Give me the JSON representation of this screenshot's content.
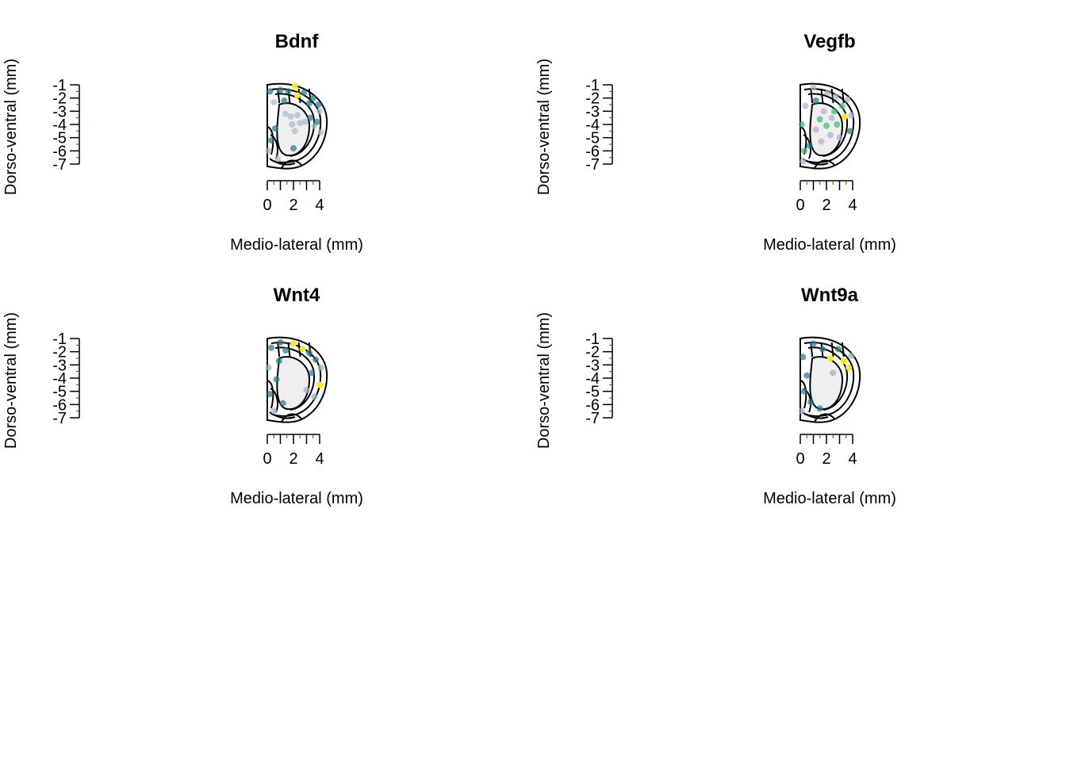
{
  "chart_data": [
    {
      "type": "scatter",
      "title": "Bdnf",
      "xlabel": "Medio-lateral (mm)",
      "ylabel": "Dorso-ventral (mm)",
      "xlim": [
        0,
        4
      ],
      "ylim": [
        -7,
        -1
      ],
      "xticks": [
        "0",
        "2",
        "4"
      ],
      "yticks": [
        "-1",
        "-2",
        "-3",
        "-4",
        "-5",
        "-6",
        "-7"
      ],
      "colors": {
        "low": "#a6bcd0",
        "mid": "#2a788e",
        "hi": "#fde725"
      },
      "points": [
        {
          "x": 2.1,
          "y": -1.1,
          "c": "hi"
        },
        {
          "x": 2.3,
          "y": -1.8,
          "c": "hi"
        },
        {
          "x": 0.2,
          "y": -1.5,
          "c": "mid"
        },
        {
          "x": 1.0,
          "y": -1.4,
          "c": "mid"
        },
        {
          "x": 1.6,
          "y": -1.5,
          "c": "mid"
        },
        {
          "x": 2.8,
          "y": -1.6,
          "c": "mid"
        },
        {
          "x": 3.5,
          "y": -2.0,
          "c": "mid"
        },
        {
          "x": 3.9,
          "y": -2.5,
          "c": "mid"
        },
        {
          "x": 0.5,
          "y": -2.3,
          "c": "low"
        },
        {
          "x": 1.3,
          "y": -2.2,
          "c": "mid"
        },
        {
          "x": 3.2,
          "y": -2.4,
          "c": "mid"
        },
        {
          "x": 4.0,
          "y": -3.0,
          "c": "low"
        },
        {
          "x": 1.4,
          "y": -3.2,
          "c": "low"
        },
        {
          "x": 1.8,
          "y": -3.4,
          "c": "low"
        },
        {
          "x": 2.3,
          "y": -3.3,
          "c": "low"
        },
        {
          "x": 3.3,
          "y": -3.5,
          "c": "mid"
        },
        {
          "x": 1.9,
          "y": -4.0,
          "c": "low"
        },
        {
          "x": 2.5,
          "y": -3.9,
          "c": "low"
        },
        {
          "x": 2.9,
          "y": -3.8,
          "c": "low"
        },
        {
          "x": 3.6,
          "y": -4.1,
          "c": "low"
        },
        {
          "x": 2.1,
          "y": -4.5,
          "c": "low"
        },
        {
          "x": 4.1,
          "y": -4.6,
          "c": "low"
        },
        {
          "x": 0.6,
          "y": -4.3,
          "c": "mid"
        },
        {
          "x": 0.3,
          "y": -5.2,
          "c": "mid"
        },
        {
          "x": 2.0,
          "y": -5.8,
          "c": "mid"
        },
        {
          "x": 0.1,
          "y": -6.0,
          "c": "low"
        },
        {
          "x": 0.8,
          "y": -6.6,
          "c": "low"
        },
        {
          "x": 3.8,
          "y": -3.8,
          "c": "mid"
        }
      ]
    },
    {
      "type": "scatter",
      "title": "Vegfb",
      "xlabel": "Medio-lateral (mm)",
      "ylabel": "Dorso-ventral (mm)",
      "xlim": [
        0,
        4
      ],
      "ylim": [
        -7,
        -1
      ],
      "xticks": [
        "0",
        "2",
        "4"
      ],
      "yticks": [
        "-1",
        "-2",
        "-3",
        "-4",
        "-5",
        "-6",
        "-7"
      ],
      "colors": {
        "low": "#b9abd0",
        "mid": "#2a788e",
        "grn": "#3dbb6f",
        "hi": "#fde725"
      },
      "points": [
        {
          "x": 3.4,
          "y": -3.4,
          "c": "hi"
        },
        {
          "x": 2.6,
          "y": -3.0,
          "c": "grn"
        },
        {
          "x": 3.2,
          "y": -2.6,
          "c": "grn"
        },
        {
          "x": 1.5,
          "y": -3.6,
          "c": "grn"
        },
        {
          "x": 2.0,
          "y": -4.1,
          "c": "grn"
        },
        {
          "x": 2.8,
          "y": -4.0,
          "c": "grn"
        },
        {
          "x": 0.1,
          "y": -4.0,
          "c": "grn"
        },
        {
          "x": 0.3,
          "y": -6.0,
          "c": "grn"
        },
        {
          "x": 3.8,
          "y": -4.5,
          "c": "mid"
        },
        {
          "x": 1.2,
          "y": -2.2,
          "c": "mid"
        },
        {
          "x": 2.1,
          "y": -1.6,
          "c": "low"
        },
        {
          "x": 1.0,
          "y": -1.2,
          "c": "low"
        },
        {
          "x": 0.4,
          "y": -2.6,
          "c": "low"
        },
        {
          "x": 2.7,
          "y": -1.9,
          "c": "low"
        },
        {
          "x": 3.6,
          "y": -2.1,
          "c": "low"
        },
        {
          "x": 1.8,
          "y": -3.0,
          "c": "low"
        },
        {
          "x": 2.4,
          "y": -3.5,
          "c": "low"
        },
        {
          "x": 1.2,
          "y": -4.4,
          "c": "low"
        },
        {
          "x": 2.3,
          "y": -4.8,
          "c": "low"
        },
        {
          "x": 3.0,
          "y": -5.0,
          "c": "low"
        },
        {
          "x": 1.6,
          "y": -5.3,
          "c": "low"
        },
        {
          "x": 0.2,
          "y": -6.8,
          "c": "low"
        },
        {
          "x": 0.7,
          "y": -5.6,
          "c": "mid"
        },
        {
          "x": 3.9,
          "y": -3.3,
          "c": "low"
        }
      ]
    },
    {
      "type": "scatter",
      "title": "Wnt4",
      "xlabel": "Medio-lateral (mm)",
      "ylabel": "Dorso-ventral (mm)",
      "xlim": [
        0,
        4
      ],
      "ylim": [
        -7,
        -1
      ],
      "xticks": [
        "0",
        "2",
        "4"
      ],
      "yticks": [
        "-1",
        "-2",
        "-3",
        "-4",
        "-5",
        "-6",
        "-7"
      ],
      "colors": {
        "low": "#8fb6bb",
        "mid": "#2a788e",
        "hi": "#fde725"
      },
      "points": [
        {
          "x": 2.0,
          "y": -1.4,
          "c": "hi"
        },
        {
          "x": 2.7,
          "y": -1.8,
          "c": "hi"
        },
        {
          "x": 4.0,
          "y": -4.5,
          "c": "hi"
        },
        {
          "x": 0.3,
          "y": -1.7,
          "c": "mid"
        },
        {
          "x": 1.0,
          "y": -1.3,
          "c": "mid"
        },
        {
          "x": 1.4,
          "y": -1.9,
          "c": "mid"
        },
        {
          "x": 3.2,
          "y": -2.1,
          "c": "mid"
        },
        {
          "x": 3.7,
          "y": -2.6,
          "c": "mid"
        },
        {
          "x": 4.1,
          "y": -3.2,
          "c": "low"
        },
        {
          "x": 0.1,
          "y": -3.2,
          "c": "low"
        },
        {
          "x": 0.9,
          "y": -2.7,
          "c": "mid"
        },
        {
          "x": 3.4,
          "y": -3.6,
          "c": "mid"
        },
        {
          "x": 3.0,
          "y": -4.9,
          "c": "low"
        },
        {
          "x": 0.7,
          "y": -4.1,
          "c": "mid"
        },
        {
          "x": 0.2,
          "y": -5.2,
          "c": "mid"
        },
        {
          "x": 1.2,
          "y": -5.9,
          "c": "mid"
        },
        {
          "x": 0.5,
          "y": -6.5,
          "c": "low"
        },
        {
          "x": 3.6,
          "y": -5.4,
          "c": "low"
        }
      ]
    },
    {
      "type": "scatter",
      "title": "Wnt9a",
      "xlabel": "Medio-lateral (mm)",
      "ylabel": "Dorso-ventral (mm)",
      "xlim": [
        0,
        4
      ],
      "ylim": [
        -7,
        -1
      ],
      "xticks": [
        "0",
        "2",
        "4"
      ],
      "yticks": [
        "-1",
        "-2",
        "-3",
        "-4",
        "-5",
        "-6",
        "-7"
      ],
      "colors": {
        "low": "#8fb6bb",
        "mid": "#2a788e",
        "hi": "#fde725"
      },
      "points": [
        {
          "x": 2.3,
          "y": -2.5,
          "c": "hi"
        },
        {
          "x": 3.3,
          "y": -2.7,
          "c": "hi"
        },
        {
          "x": 3.7,
          "y": -3.2,
          "c": "hi"
        },
        {
          "x": 2.5,
          "y": -3.6,
          "c": "low"
        },
        {
          "x": 0.2,
          "y": -2.4,
          "c": "mid"
        },
        {
          "x": 1.0,
          "y": -1.4,
          "c": "mid"
        },
        {
          "x": 1.7,
          "y": -1.8,
          "c": "mid"
        },
        {
          "x": 2.9,
          "y": -1.8,
          "c": "mid"
        },
        {
          "x": 3.9,
          "y": -2.3,
          "c": "low"
        },
        {
          "x": 0.5,
          "y": -3.8,
          "c": "mid"
        },
        {
          "x": 0.3,
          "y": -5.0,
          "c": "mid"
        },
        {
          "x": 0.8,
          "y": -5.8,
          "c": "mid"
        },
        {
          "x": 1.5,
          "y": -6.3,
          "c": "mid"
        },
        {
          "x": 0.1,
          "y": -6.5,
          "c": "low"
        }
      ]
    }
  ]
}
